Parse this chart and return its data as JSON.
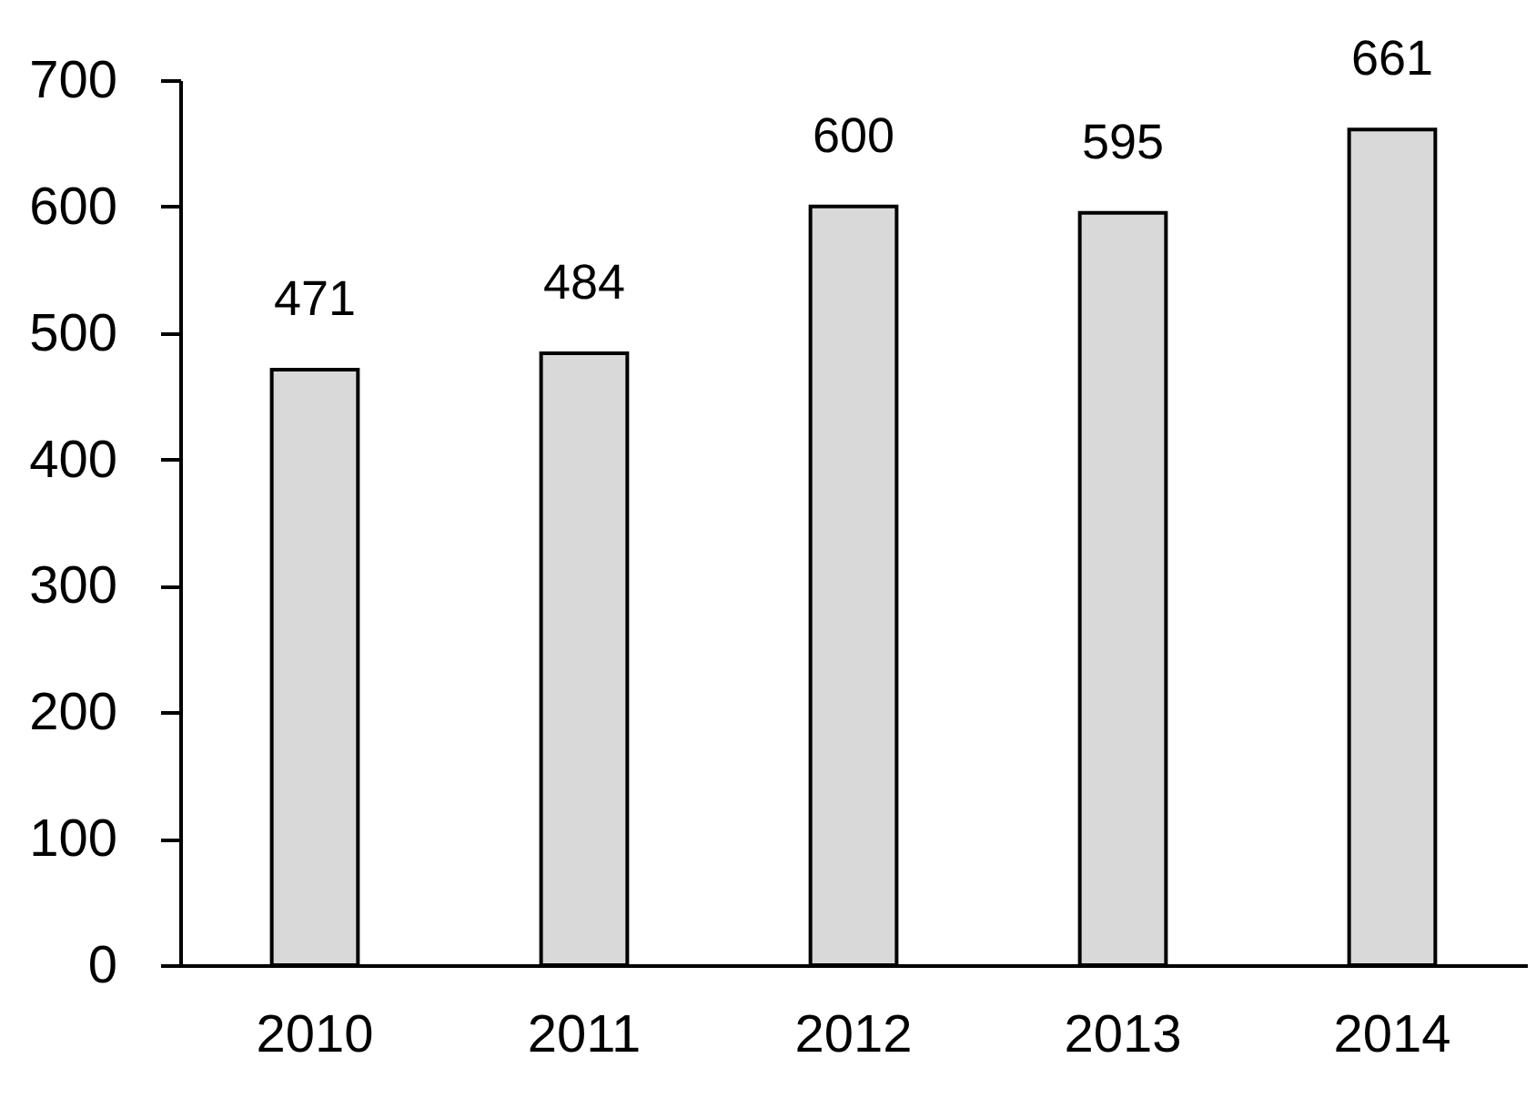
{
  "chart_data": {
    "type": "bar",
    "categories": [
      "2010",
      "2011",
      "2012",
      "2013",
      "2014"
    ],
    "values": [
      471,
      484,
      600,
      595,
      661
    ],
    "color": "#d9d9d9",
    "ylim": [
      0,
      700
    ],
    "yticks": [
      0,
      100,
      200,
      300,
      400,
      500,
      600,
      700
    ],
    "data_labels": true
  }
}
